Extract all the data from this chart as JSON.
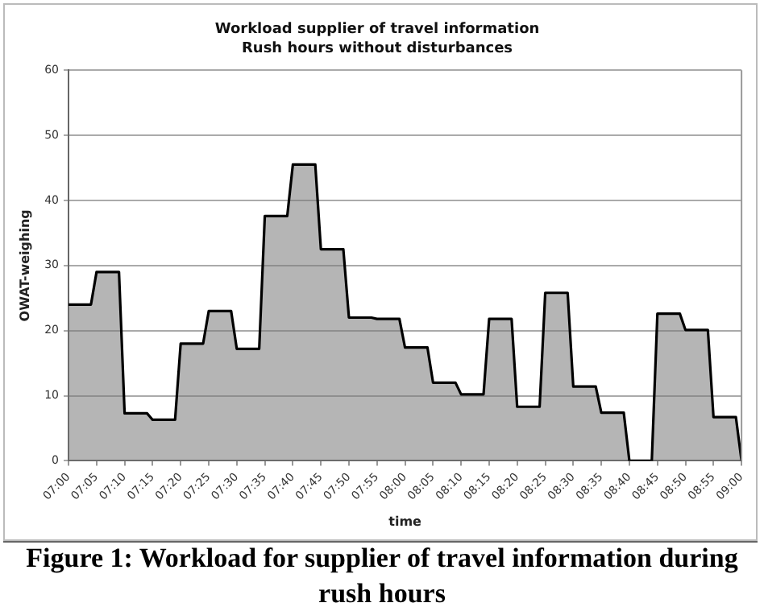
{
  "chart_data": {
    "type": "area",
    "title": "Workload supplier of travel information",
    "subtitle": "Rush hours without disturbances",
    "xlabel": "time",
    "ylabel": "OWAT-weighing",
    "annotations": [
      "Figure 1: Workload for supplier of travel information during rush hours"
    ],
    "x": [
      7,
      7.0667,
      7.0833,
      7.15,
      7.1667,
      7.2333,
      7.25,
      7.3167,
      7.3333,
      7.4,
      7.4167,
      7.4833,
      7.5,
      7.5667,
      7.5833,
      7.65,
      7.6667,
      7.7333,
      7.75,
      7.8167,
      7.8333,
      7.9,
      7.9167,
      7.9833,
      8,
      8.0667,
      8.0833,
      8.15,
      8.1667,
      8.2333,
      8.25,
      8.3167,
      8.3333,
      8.4,
      8.4167,
      8.4833,
      8.5,
      8.5667,
      8.5833,
      8.65,
      8.6667,
      8.7333,
      8.75,
      8.8167,
      8.8333,
      8.9,
      8.9167,
      8.9833,
      9
    ],
    "series": [
      {
        "color": "#000000",
        "values": [
          24,
          24,
          29,
          29,
          7.3,
          7.3,
          6.3,
          6.3,
          18,
          18,
          23,
          23,
          17.2,
          17.2,
          37.6,
          37.6,
          45.5,
          45.5,
          32.5,
          32.5,
          22,
          22,
          21.8,
          21.8,
          17.4,
          17.4,
          12,
          12,
          10.2,
          10.2,
          21.8,
          21.8,
          8.3,
          8.3,
          25.8,
          25.8,
          11.4,
          11.4,
          7.4,
          7.4,
          0,
          0,
          22.6,
          22.6,
          20.1,
          20.1,
          6.7,
          6.7,
          0
        ]
      }
    ],
    "xlim": [
      7,
      9
    ],
    "xticks": [
      {
        "value": 7,
        "label": "07:00"
      },
      {
        "value": 7.0833,
        "label": "07:05"
      },
      {
        "value": 7.1667,
        "label": "07:10"
      },
      {
        "value": 7.25,
        "label": "07:15"
      },
      {
        "value": 7.3333,
        "label": "07:20"
      },
      {
        "value": 7.4167,
        "label": "07:25"
      },
      {
        "value": 7.5,
        "label": "07:30"
      },
      {
        "value": 7.5833,
        "label": "07:35"
      },
      {
        "value": 7.6667,
        "label": "07:40"
      },
      {
        "value": 7.75,
        "label": "07:45"
      },
      {
        "value": 7.8333,
        "label": "07:50"
      },
      {
        "value": 7.9167,
        "label": "07:55"
      },
      {
        "value": 8,
        "label": "08:00"
      },
      {
        "value": 8.0833,
        "label": "08:05"
      },
      {
        "value": 8.1667,
        "label": "08:10"
      },
      {
        "value": 8.25,
        "label": "08:15"
      },
      {
        "value": 8.3333,
        "label": "08:20"
      },
      {
        "value": 8.4167,
        "label": "08:25"
      },
      {
        "value": 8.5,
        "label": "08:30"
      },
      {
        "value": 8.5833,
        "label": "08:35"
      },
      {
        "value": 8.6667,
        "label": "08:40"
      },
      {
        "value": 8.75,
        "label": "08:45"
      },
      {
        "value": 8.8333,
        "label": "08:50"
      },
      {
        "value": 8.9167,
        "label": "08:55"
      },
      {
        "value": 9,
        "label": "09:00"
      }
    ],
    "ylim": [
      0,
      60
    ],
    "yticks": [
      0,
      10,
      20,
      30,
      40,
      50,
      60
    ],
    "grid": "y",
    "marker": "none",
    "line_style": "solid"
  }
}
